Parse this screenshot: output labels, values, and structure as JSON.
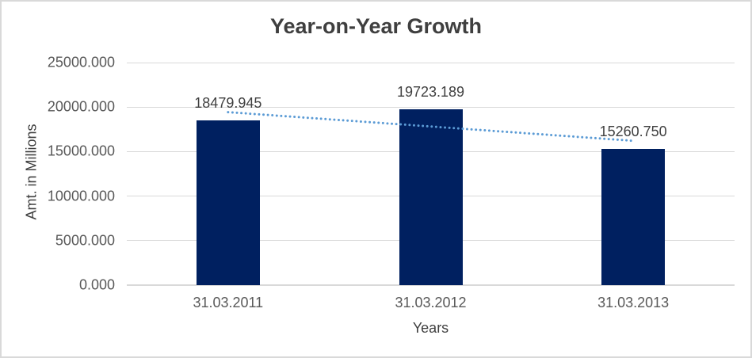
{
  "chart_data": {
    "type": "bar",
    "title": "Year-on-Year Growth",
    "xlabel": "Years",
    "ylabel": "Amt. in Millions",
    "categories": [
      "31.03.2011",
      "31.03.2012",
      "31.03.2013"
    ],
    "values": [
      18479.945,
      19723.189,
      15260.75
    ],
    "data_labels": [
      "18479.945",
      "19723.189",
      "15260.750"
    ],
    "ylim": [
      0,
      25000
    ],
    "y_tick_step": 5000,
    "y_tick_labels": [
      "0.000",
      "5000.000",
      "10000.000",
      "15000.000",
      "20000.000",
      "25000.000"
    ],
    "grid": true,
    "legend": "none",
    "trendline": {
      "type": "linear",
      "style": "dotted"
    },
    "colors": {
      "bar": "#002060",
      "gridline": "#D9D9D9",
      "trendline": "#5B9BD5",
      "title_text": "#3F3F3F",
      "tick_text": "#595959",
      "axis_title_text": "#404040",
      "data_label_text": "#404040"
    }
  }
}
